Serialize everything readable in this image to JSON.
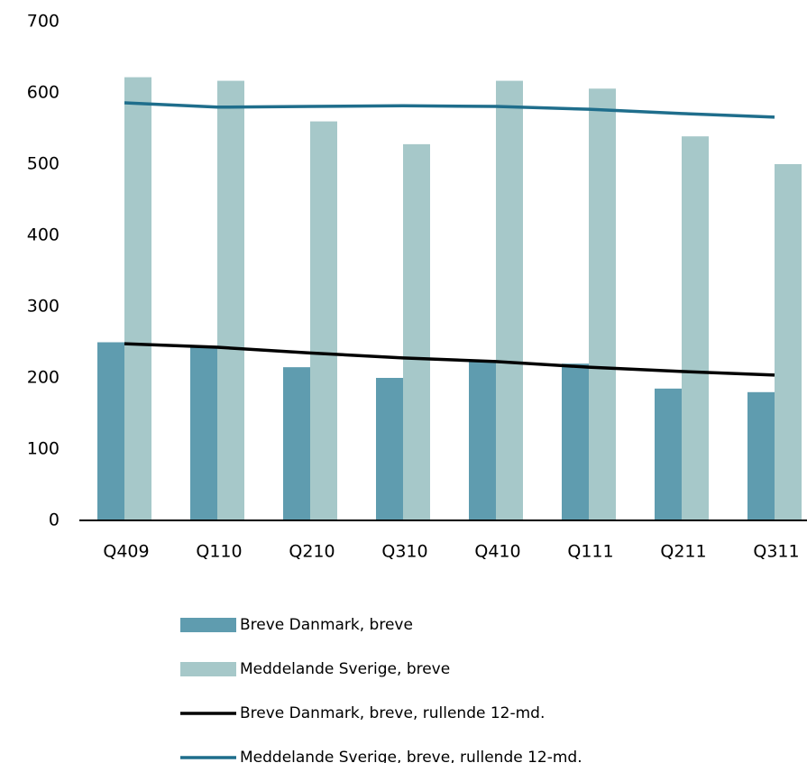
{
  "chart_data": {
    "type": "bar",
    "categories": [
      "Q409",
      "Q110",
      "Q210",
      "Q310",
      "Q410",
      "Q111",
      "Q211",
      "Q311"
    ],
    "series": [
      {
        "name": "Breve Danmark, breve",
        "type": "bar",
        "color": "#5f9caf",
        "values": [
          250,
          245,
          215,
          200,
          225,
          220,
          185,
          180
        ]
      },
      {
        "name": "Meddelande Sverige, breve",
        "type": "bar",
        "color": "#a6c8c9",
        "values": [
          622,
          617,
          560,
          528,
          617,
          606,
          539,
          500
        ]
      },
      {
        "name": "Breve Danmark, breve, rullende 12-md.",
        "type": "line",
        "color": "#000000",
        "values": [
          248,
          243,
          235,
          228,
          223,
          215,
          209,
          204
        ]
      },
      {
        "name": "Meddelande Sverige, breve, rullende 12-md.",
        "type": "line",
        "color": "#1f6e8c",
        "values": [
          586,
          580,
          581,
          582,
          581,
          577,
          571,
          566
        ]
      }
    ],
    "ylim": [
      0,
      700
    ],
    "yticks": [
      0,
      100,
      200,
      300,
      400,
      500,
      600,
      700
    ],
    "grid": false
  }
}
